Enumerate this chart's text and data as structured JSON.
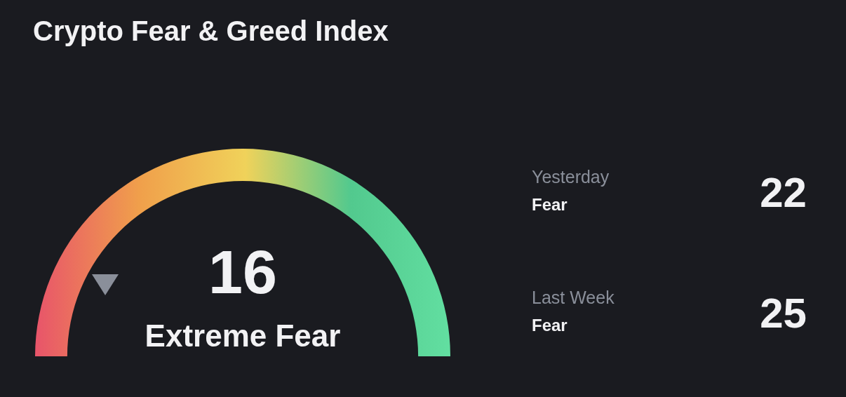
{
  "chart_data": [
    {
      "type": "other",
      "title": "Crypto Fear & Greed Index",
      "values": [
        16
      ],
      "categories": [
        "Extreme Fear"
      ],
      "data_labels": true
    },
    {
      "type": "other",
      "categories": [
        "Yesterday",
        "Last Week"
      ],
      "values": [
        22,
        25
      ],
      "annotations": [
        "Fear",
        "Fear"
      ],
      "data_labels": true
    }
  ]
}
